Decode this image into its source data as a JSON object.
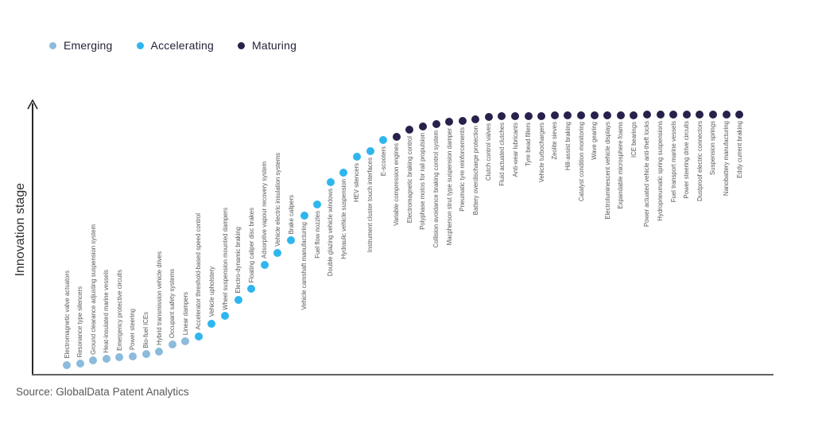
{
  "legend": {
    "items": [
      {
        "label": "Emerging",
        "color": "#8cbbdb"
      },
      {
        "label": "Accelerating",
        "color": "#2fb6ee"
      },
      {
        "label": "Maturing",
        "color": "#29204b"
      }
    ]
  },
  "y_axis_label": "Innovation stage",
  "source": "Source: GlobalData Patent Analytics",
  "chart_data": {
    "type": "scatter",
    "title": "",
    "xlabel": "",
    "ylabel": "Innovation stage",
    "x_axis_ticks": [],
    "y_axis_ticks": [],
    "grid": false,
    "legend_position": "top-left",
    "legend": [
      "Emerging",
      "Accelerating",
      "Maturing"
    ],
    "colors": {
      "Emerging": "#8cbbdb",
      "Accelerating": "#2fb6ee",
      "Maturing": "#29204b"
    },
    "note": "stage_value is the innovation-stage height of each dot on a 0-100 scale estimated from the unlabeled axis",
    "points": [
      {
        "label": "Electromagnetic valve actuators",
        "stage": "Emerging",
        "stage_value": 0
      },
      {
        "label": "Resonance type silencers",
        "stage": "Emerging",
        "stage_value": 0.5
      },
      {
        "label": "Ground clearance adjusting suspension system",
        "stage": "Emerging",
        "stage_value": 1.8
      },
      {
        "label": "Heat-insulated marine vessels",
        "stage": "Emerging",
        "stage_value": 2.4
      },
      {
        "label": "Emergency protective circuits",
        "stage": "Emerging",
        "stage_value": 3.1
      },
      {
        "label": "Power steering",
        "stage": "Emerging",
        "stage_value": 3.4
      },
      {
        "label": "Bio-fuel ICEs",
        "stage": "Emerging",
        "stage_value": 4.4
      },
      {
        "label": "Hybrid transmission vehicle drives",
        "stage": "Emerging",
        "stage_value": 5.5
      },
      {
        "label": "Occupant safety systems",
        "stage": "Emerging",
        "stage_value": 8.2
      },
      {
        "label": "Linear dampers",
        "stage": "Emerging",
        "stage_value": 9.4
      },
      {
        "label": "Accelerator threshold-based speed control",
        "stage": "Accelerating",
        "stage_value": 11.5
      },
      {
        "label": "Vehicle upholstery",
        "stage": "Accelerating",
        "stage_value": 16.6
      },
      {
        "label": "Wheel suspension mounted dampers",
        "stage": "Accelerating",
        "stage_value": 19.6
      },
      {
        "label": "Electro-dynamic braking",
        "stage": "Accelerating",
        "stage_value": 26.1
      },
      {
        "label": "Floating caliper disc brakes",
        "stage": "Accelerating",
        "stage_value": 30.4
      },
      {
        "label": "Adsorptive vapour recovery system",
        "stage": "Accelerating",
        "stage_value": 40.1
      },
      {
        "label": "Vehicle electric insulation systems",
        "stage": "Accelerating",
        "stage_value": 44.9
      },
      {
        "label": "Brake calipers",
        "stage": "Accelerating",
        "stage_value": 49.7
      },
      {
        "label": "Vehicle camshaft manufacturing",
        "stage": "Accelerating",
        "stage_value": 59.8
      },
      {
        "label": "Fuel flow nozzles",
        "stage": "Accelerating",
        "stage_value": 64.2
      },
      {
        "label": "Double glazing vehicle windows",
        "stage": "Accelerating",
        "stage_value": 72.9
      },
      {
        "label": "Hydraulic vehicle suspension",
        "stage": "Accelerating",
        "stage_value": 76.7
      },
      {
        "label": "HEV silencers",
        "stage": "Accelerating",
        "stage_value": 83.1
      },
      {
        "label": "Instrument cluster touch interfaces",
        "stage": "Accelerating",
        "stage_value": 85.4
      },
      {
        "label": "E-scooters",
        "stage": "Accelerating",
        "stage_value": 89.8
      },
      {
        "label": "Variable compression engines",
        "stage": "Maturing",
        "stage_value": 91.2
      },
      {
        "label": "Electromagnetic braking control",
        "stage": "Maturing",
        "stage_value": 94.1
      },
      {
        "label": "Polyphase motos for rail propulsion",
        "stage": "Maturing",
        "stage_value": 95.1
      },
      {
        "label": "Collision avoidance braking control system",
        "stage": "Maturing",
        "stage_value": 96.3
      },
      {
        "label": "Macpherson strut type suspension damper",
        "stage": "Maturing",
        "stage_value": 97.0
      },
      {
        "label": "Pneumatic tyre reinforcements",
        "stage": "Maturing",
        "stage_value": 97.6
      },
      {
        "label": "Battery overdischarge protection",
        "stage": "Maturing",
        "stage_value": 98.2
      },
      {
        "label": "Clutch control valves",
        "stage": "Maturing",
        "stage_value": 98.9
      },
      {
        "label": "Fluid actuated clutches",
        "stage": "Maturing",
        "stage_value": 99.3
      },
      {
        "label": "Anti-wear lubricants",
        "stage": "Maturing",
        "stage_value": 99.4
      },
      {
        "label": "Tyre bead fillers",
        "stage": "Maturing",
        "stage_value": 99.5
      },
      {
        "label": "Vehicle turbochargers",
        "stage": "Maturing",
        "stage_value": 99.5
      },
      {
        "label": "Zeolite sieves",
        "stage": "Maturing",
        "stage_value": 99.6
      },
      {
        "label": "Hill-assist braking",
        "stage": "Maturing",
        "stage_value": 99.6
      },
      {
        "label": "Catalyst condition monitoring",
        "stage": "Maturing",
        "stage_value": 99.7
      },
      {
        "label": "Wave gearing",
        "stage": "Maturing",
        "stage_value": 99.7
      },
      {
        "label": "Electroluminescent vehicle displays",
        "stage": "Maturing",
        "stage_value": 99.8
      },
      {
        "label": "Expandable microsphere foams",
        "stage": "Maturing",
        "stage_value": 99.8
      },
      {
        "label": "ICE bearings",
        "stage": "Maturing",
        "stage_value": 99.8
      },
      {
        "label": "Power actuated vehicle anti-theft locks",
        "stage": "Maturing",
        "stage_value": 99.9
      },
      {
        "label": "Hydropneumatic spring suspensions",
        "stage": "Maturing",
        "stage_value": 99.9
      },
      {
        "label": "Fuel transport marine vessels",
        "stage": "Maturing",
        "stage_value": 99.9
      },
      {
        "label": "Power steering drive circuits",
        "stage": "Maturing",
        "stage_value": 99.9
      },
      {
        "label": "Dustproof electric connectors",
        "stage": "Maturing",
        "stage_value": 100
      },
      {
        "label": "Suspension springs",
        "stage": "Maturing",
        "stage_value": 100
      },
      {
        "label": "Nanobattery manufacturing",
        "stage": "Maturing",
        "stage_value": 100
      },
      {
        "label": "Eddy current braking",
        "stage": "Maturing",
        "stage_value": 100
      }
    ]
  }
}
